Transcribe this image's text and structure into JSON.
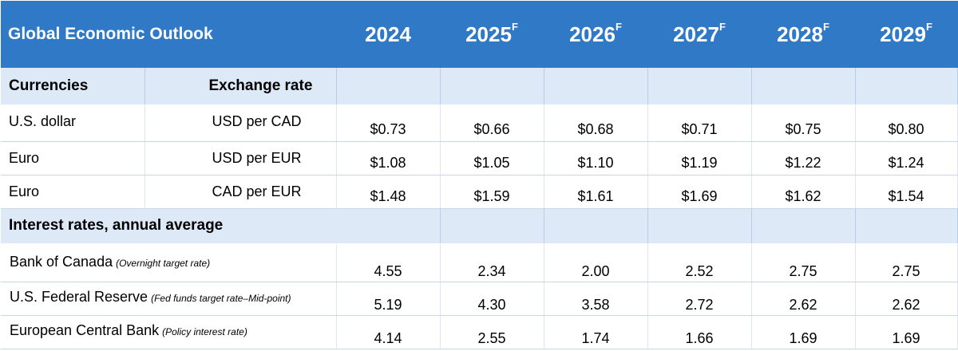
{
  "header": {
    "title": "Global Economic Outlook",
    "years": [
      {
        "label": "2024",
        "sup": ""
      },
      {
        "label": "2025",
        "sup": "F"
      },
      {
        "label": "2026",
        "sup": "F"
      },
      {
        "label": "2027",
        "sup": "F"
      },
      {
        "label": "2028",
        "sup": "F"
      },
      {
        "label": "2029",
        "sup": "F"
      }
    ]
  },
  "currencies": {
    "label": "Currencies",
    "rate_label": "Exchange rate",
    "rows": [
      {
        "name": "U.S. dollar",
        "unit": "USD per CAD",
        "values": [
          "$0.73",
          "$0.66",
          "$0.68",
          "$0.71",
          "$0.75",
          "$0.80"
        ]
      },
      {
        "name": "Euro",
        "unit": "USD per EUR",
        "values": [
          "$1.08",
          "$1.05",
          "$1.10",
          "$1.19",
          "$1.22",
          "$1.24"
        ]
      },
      {
        "name": "Euro",
        "unit": "CAD per EUR",
        "values": [
          "$1.48",
          "$1.59",
          "$1.61",
          "$1.69",
          "$1.62",
          "$1.54"
        ]
      }
    ]
  },
  "interest": {
    "label": "Interest rates, annual average",
    "rows": [
      {
        "name": "Bank of Canada",
        "note": "(Overnight target rate)",
        "values": [
          "4.55",
          "2.34",
          "2.00",
          "2.52",
          "2.75",
          "2.75"
        ]
      },
      {
        "name": "U.S. Federal Reserve",
        "note": "(Fed funds target rate–Mid-point)",
        "values": [
          "5.19",
          "4.30",
          "3.58",
          "2.72",
          "2.62",
          "2.62"
        ]
      },
      {
        "name": "European Central Bank",
        "note": "(Policy interest rate)",
        "values": [
          "4.14",
          "2.55",
          "1.74",
          "1.66",
          "1.69",
          "1.69"
        ]
      }
    ]
  },
  "colors": {
    "header_bg": "#3079c6",
    "section_bg": "#dde9f6"
  }
}
